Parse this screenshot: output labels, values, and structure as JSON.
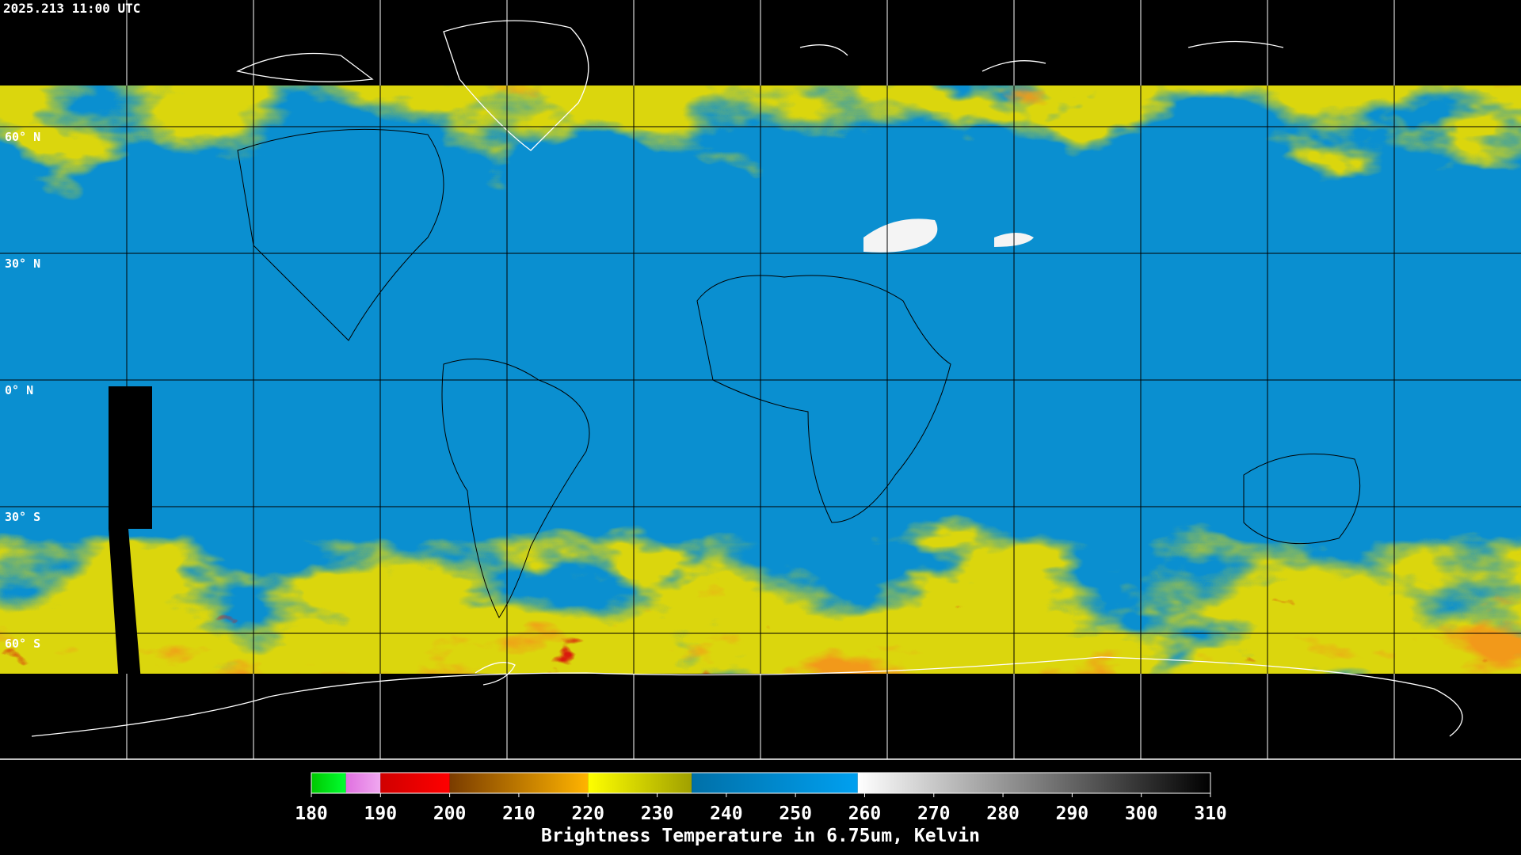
{
  "timestamp": "2025.213 11:00 UTC",
  "latitude_labels": [
    "60° N",
    "30° N",
    "0° N",
    "30° S",
    "60° S"
  ],
  "colorbar": {
    "title": "Brightness Temperature in 6.75um, Kelvin",
    "range": [
      180,
      310
    ],
    "ticks": [
      180,
      190,
      200,
      210,
      220,
      230,
      240,
      250,
      260,
      270,
      280,
      290,
      300,
      310
    ],
    "segments": [
      {
        "from": 180,
        "to": 185,
        "colors": [
          "#00c800",
          "#00ff30"
        ]
      },
      {
        "from": 185,
        "to": 190,
        "colors": [
          "#e070e0",
          "#f0a8f0"
        ]
      },
      {
        "from": 190,
        "to": 200,
        "colors": [
          "#d00000",
          "#ff0000"
        ]
      },
      {
        "from": 200,
        "to": 220,
        "colors": [
          "#7a3c00",
          "#ffb400"
        ]
      },
      {
        "from": 220,
        "to": 235,
        "colors": [
          "#ffff00",
          "#a0a000"
        ]
      },
      {
        "from": 235,
        "to": 259,
        "colors": [
          "#0070a8",
          "#00a0f0"
        ]
      },
      {
        "from": 259,
        "to": 310,
        "colors": [
          "#ffffff",
          "#000000"
        ]
      }
    ]
  }
}
